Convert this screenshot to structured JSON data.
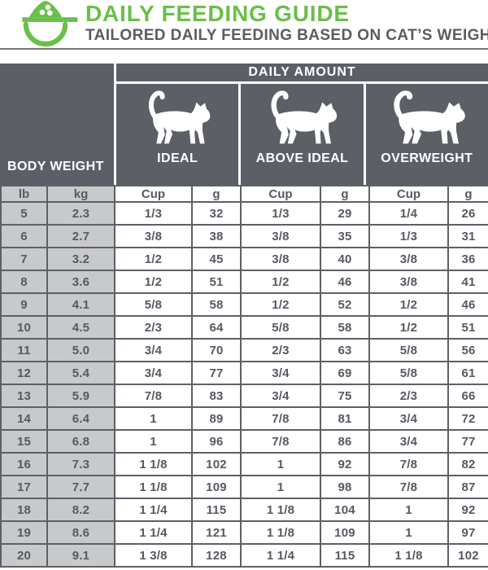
{
  "header": {
    "title": "DAILY FEEDING GUIDE",
    "subtitle": "TAILORED DAILY FEEDING BASED ON CAT’S WEIGHT"
  },
  "table": {
    "daily_amount_label": "DAILY AMOUNT",
    "body_weight_label": "BODY WEIGHT",
    "categories": [
      {
        "label": "IDEAL",
        "icon": "cat-ideal-icon"
      },
      {
        "label": "ABOVE IDEAL",
        "icon": "cat-above-ideal-icon"
      },
      {
        "label": "OVERWEIGHT",
        "icon": "cat-overweight-icon"
      }
    ],
    "unit_headers": {
      "lb": "lb",
      "kg": "kg",
      "cup": "Cup",
      "g": "g"
    },
    "rows": [
      [
        "5",
        "2.3",
        "1/3",
        "32",
        "1/3",
        "29",
        "1/4",
        "26"
      ],
      [
        "6",
        "2.7",
        "3/8",
        "38",
        "3/8",
        "35",
        "1/3",
        "31"
      ],
      [
        "7",
        "3.2",
        "1/2",
        "45",
        "3/8",
        "40",
        "3/8",
        "36"
      ],
      [
        "8",
        "3.6",
        "1/2",
        "51",
        "1/2",
        "46",
        "3/8",
        "41"
      ],
      [
        "9",
        "4.1",
        "5/8",
        "58",
        "1/2",
        "52",
        "1/2",
        "46"
      ],
      [
        "10",
        "4.5",
        "2/3",
        "64",
        "5/8",
        "58",
        "1/2",
        "51"
      ],
      [
        "11",
        "5.0",
        "3/4",
        "70",
        "2/3",
        "63",
        "5/8",
        "56"
      ],
      [
        "12",
        "5.4",
        "3/4",
        "77",
        "3/4",
        "69",
        "5/8",
        "61"
      ],
      [
        "13",
        "5.9",
        "7/8",
        "83",
        "3/4",
        "75",
        "2/3",
        "66"
      ],
      [
        "14",
        "6.4",
        "1",
        "89",
        "7/8",
        "81",
        "3/4",
        "72"
      ],
      [
        "15",
        "6.8",
        "1",
        "96",
        "7/8",
        "86",
        "3/4",
        "77"
      ],
      [
        "16",
        "7.3",
        "1 1/8",
        "102",
        "1",
        "92",
        "7/8",
        "82"
      ],
      [
        "17",
        "7.7",
        "1 1/8",
        "109",
        "1",
        "98",
        "7/8",
        "87"
      ],
      [
        "18",
        "8.2",
        "1 1/4",
        "115",
        "1 1/8",
        "104",
        "1",
        "92"
      ],
      [
        "19",
        "8.6",
        "1 1/4",
        "121",
        "1 1/8",
        "109",
        "1",
        "97"
      ],
      [
        "20",
        "9.1",
        "1 3/8",
        "128",
        "1 1/4",
        "115",
        "1 1/8",
        "102"
      ]
    ]
  },
  "colors": {
    "brand_green": "#6abf4a",
    "header_bg": "#5c5f66",
    "light_cell_bg": "#c8c9ca",
    "cell_border": "#5d6066",
    "text_dark": "#565961",
    "text_white": "#ffffff"
  }
}
